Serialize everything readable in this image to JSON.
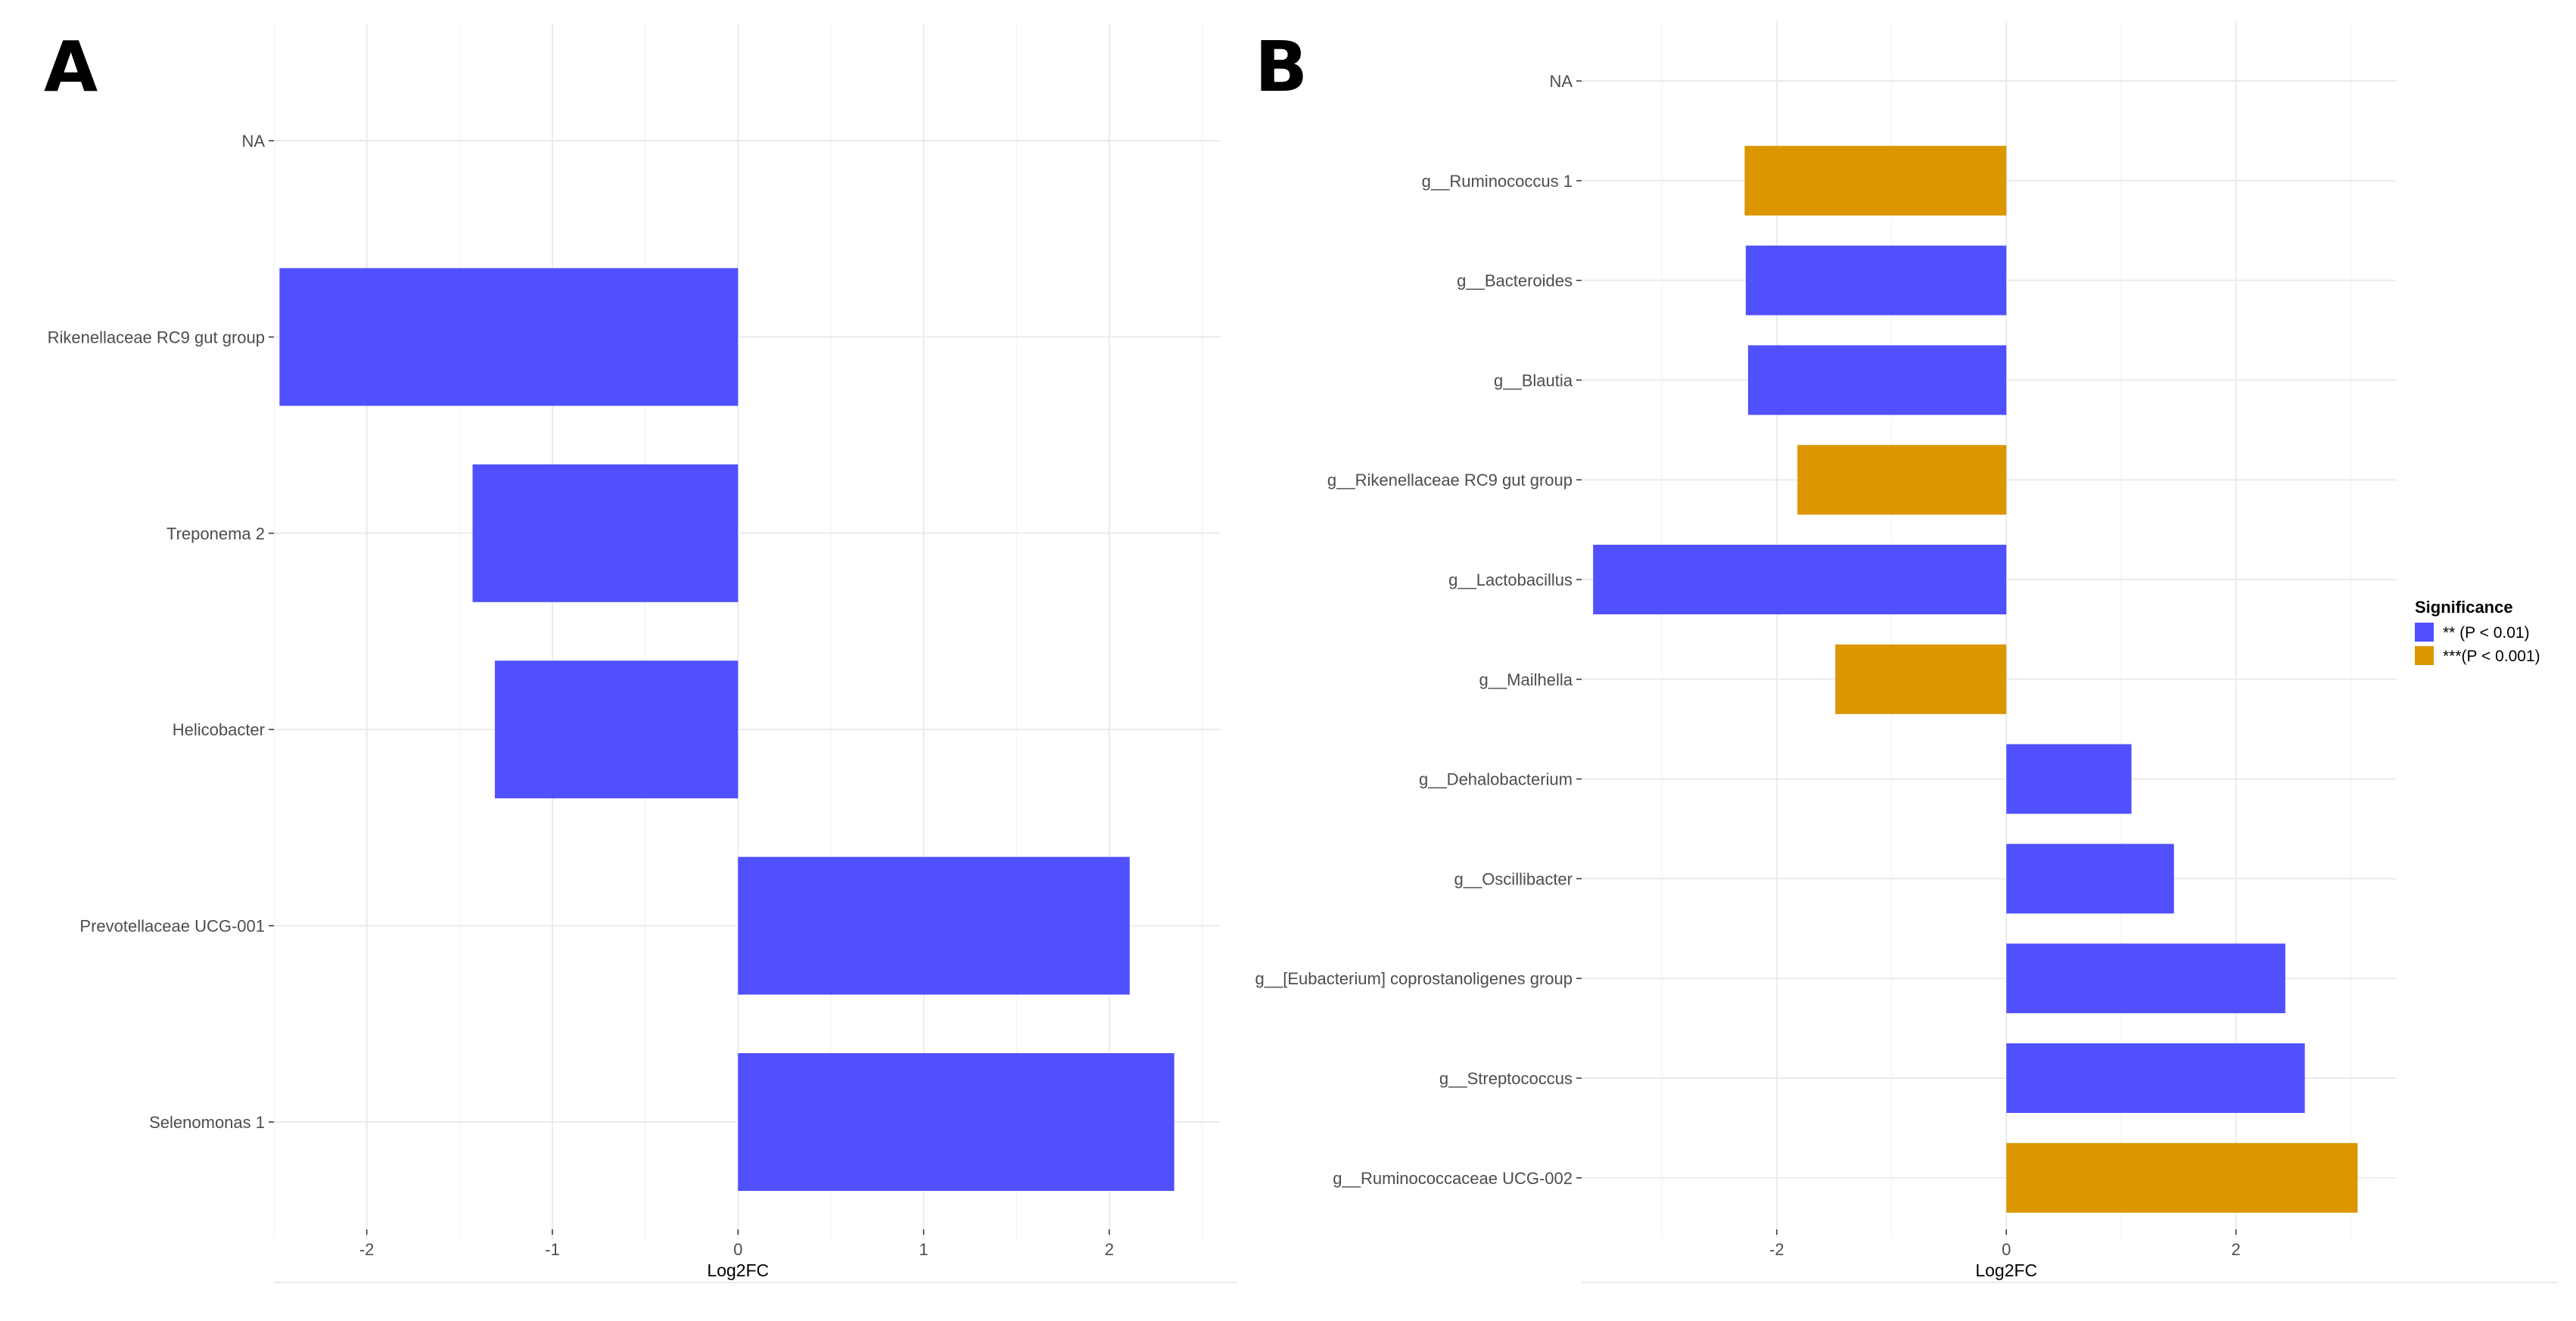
{
  "colors": {
    "sig_2": "#5050ff",
    "sig_3": "#db9600",
    "grid_major": "#ebebeb",
    "grid_minor": "#f3f3f3",
    "text": "#4d4d4d"
  },
  "chart_data": [
    {
      "panel": "A",
      "type": "bar",
      "orientation": "horizontal",
      "xlabel": "Log2FC",
      "ylabel": "",
      "xlim": [
        -2.5,
        2.6
      ],
      "xticks": [
        -2,
        -1,
        0,
        1,
        2
      ],
      "grid": true,
      "categories": [
        "NA",
        "Rikenellaceae RC9 gut group",
        "Treponema 2",
        "Helicobacter",
        "Prevotellaceae UCG-001",
        "Selenomonas 1"
      ],
      "values": [
        null,
        -2.47,
        -1.43,
        -1.31,
        2.11,
        2.35
      ],
      "significance": [
        null,
        "2",
        "2",
        "2",
        "2",
        "2"
      ]
    },
    {
      "panel": "B",
      "type": "bar",
      "orientation": "horizontal",
      "xlabel": "Log2FC",
      "ylabel": "",
      "xlim": [
        -3.7,
        3.4
      ],
      "xticks": [
        -2,
        0,
        2
      ],
      "grid": true,
      "categories": [
        "NA",
        "g__Ruminococcus 1",
        "g__Bacteroides",
        "g__Blautia",
        "g__Rikenellaceae RC9 gut group",
        "g__Lactobacillus",
        "g__Mailhella",
        "g__Dehalobacterium",
        "g__Oscillibacter",
        "g__[Eubacterium] coprostanoligenes group",
        "g__Streptococcus",
        "g__Ruminococcaceae UCG-002"
      ],
      "values": [
        null,
        -2.28,
        -2.27,
        -2.25,
        -1.82,
        -3.6,
        -1.49,
        1.09,
        1.46,
        2.43,
        2.6,
        3.06
      ],
      "significance": [
        null,
        "3",
        "2",
        "2",
        "3",
        "2",
        "3",
        "2",
        "2",
        "2",
        "2",
        "3"
      ],
      "legend": {
        "title": "Significance",
        "position": "right",
        "entries": [
          {
            "key": "2",
            "label": "** (P < 0.01)"
          },
          {
            "key": "3",
            "label": "***(P < 0.001)"
          }
        ]
      }
    }
  ]
}
